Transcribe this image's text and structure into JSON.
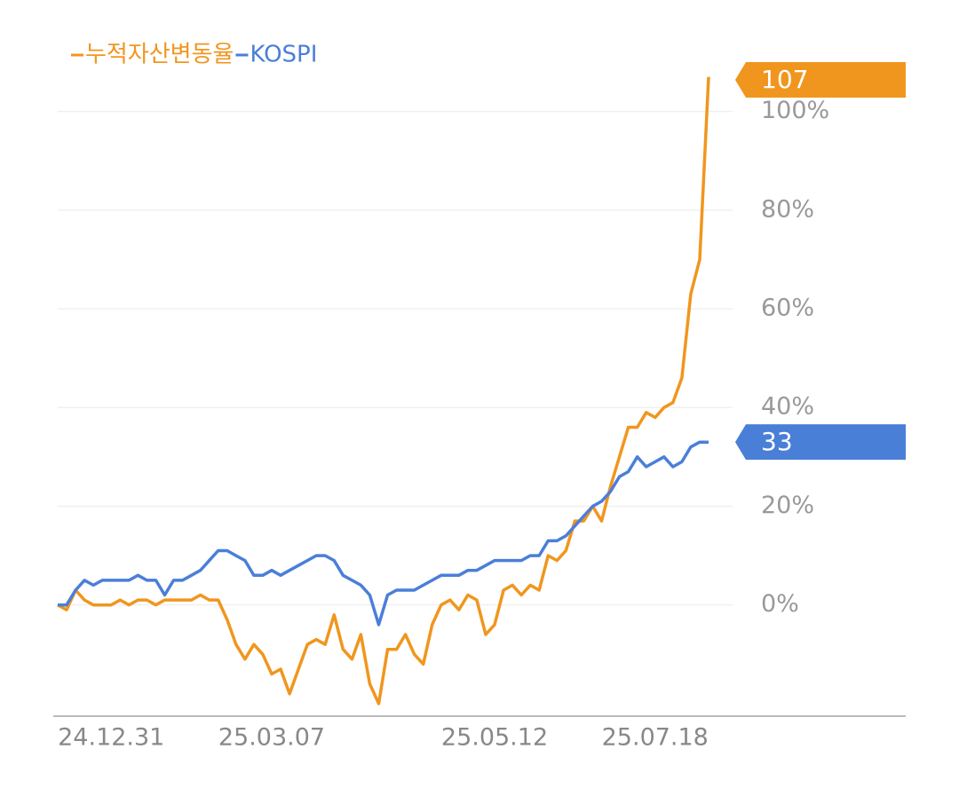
{
  "chart_data": {
    "type": "line",
    "categories": [
      null,
      null,
      null,
      null,
      null,
      null,
      "24.12.31",
      null,
      null,
      null,
      null,
      null,
      null,
      null,
      null,
      null,
      null,
      null,
      null,
      null,
      null,
      null,
      null,
      null,
      "25.03.07",
      null,
      null,
      null,
      null,
      null,
      null,
      null,
      null,
      null,
      null,
      null,
      null,
      null,
      null,
      null,
      null,
      null,
      null,
      null,
      null,
      null,
      null,
      null,
      null,
      "25.05.12",
      null,
      null,
      null,
      null,
      null,
      null,
      null,
      null,
      null,
      null,
      null,
      null,
      null,
      null,
      null,
      null,
      null,
      "25.07.18",
      null,
      null,
      null,
      null,
      null,
      null
    ],
    "series": [
      {
        "name": "누적자산변동율",
        "color": "#f0961e",
        "values": [
          0,
          -1,
          3,
          1,
          0,
          0,
          0,
          1,
          0,
          1,
          1,
          0,
          1,
          1,
          1,
          1,
          2,
          1,
          1,
          -3,
          -8,
          -11,
          -8,
          -10,
          -14,
          -13,
          -18,
          -13,
          -8,
          -7,
          -8,
          -2,
          -9,
          -11,
          -6,
          -16,
          -20,
          -9,
          -9,
          -6,
          -10,
          -12,
          -4,
          0,
          1,
          -1,
          2,
          1,
          -6,
          -4,
          3,
          4,
          2,
          4,
          3,
          10,
          9,
          11,
          17,
          17,
          20,
          17,
          24,
          30,
          36,
          36,
          39,
          38,
          40,
          41,
          46,
          63,
          70,
          107
        ]
      },
      {
        "name": "KOSPI",
        "color": "#4a7fd8",
        "values": [
          0,
          0,
          3,
          5,
          4,
          5,
          5,
          5,
          5,
          6,
          5,
          5,
          2,
          5,
          5,
          6,
          7,
          9,
          11,
          11,
          10,
          9,
          6,
          6,
          7,
          6,
          7,
          8,
          9,
          10,
          10,
          9,
          6,
          5,
          4,
          2,
          -4,
          2,
          3,
          3,
          3,
          4,
          5,
          6,
          6,
          6,
          7,
          7,
          8,
          9,
          9,
          9,
          9,
          10,
          10,
          13,
          13,
          14,
          16,
          18,
          20,
          21,
          23,
          26,
          27,
          30,
          28,
          29,
          30,
          28,
          29,
          32,
          33,
          33
        ]
      }
    ],
    "ylim": [
      -22,
      110
    ],
    "yticks": [
      {
        "value": 0,
        "label": "0%"
      },
      {
        "value": 20,
        "label": "20%"
      },
      {
        "value": 40,
        "label": "40%"
      },
      {
        "value": 60,
        "label": "60%"
      },
      {
        "value": 80,
        "label": "80%"
      },
      {
        "value": 100,
        "label": "100%"
      }
    ],
    "grid": true
  }
}
